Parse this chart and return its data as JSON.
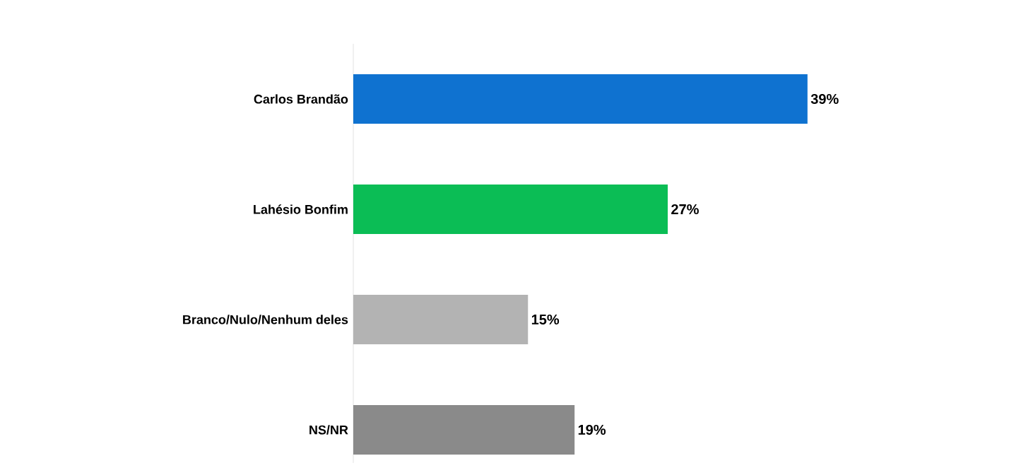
{
  "chart_data": {
    "type": "bar",
    "orientation": "horizontal",
    "categories": [
      "Carlos Brandão",
      "Lahésio Bonfim",
      "Branco/Nulo/Nenhum deles",
      "NS/NR"
    ],
    "values": [
      39,
      27,
      15,
      19
    ],
    "value_labels": [
      "39%",
      "27%",
      "15%",
      "19%"
    ],
    "colors": [
      "#0f72d0",
      "#0bbd55",
      "#b3b3b3",
      "#8a8a8a"
    ],
    "tick_labels": "y"
  }
}
